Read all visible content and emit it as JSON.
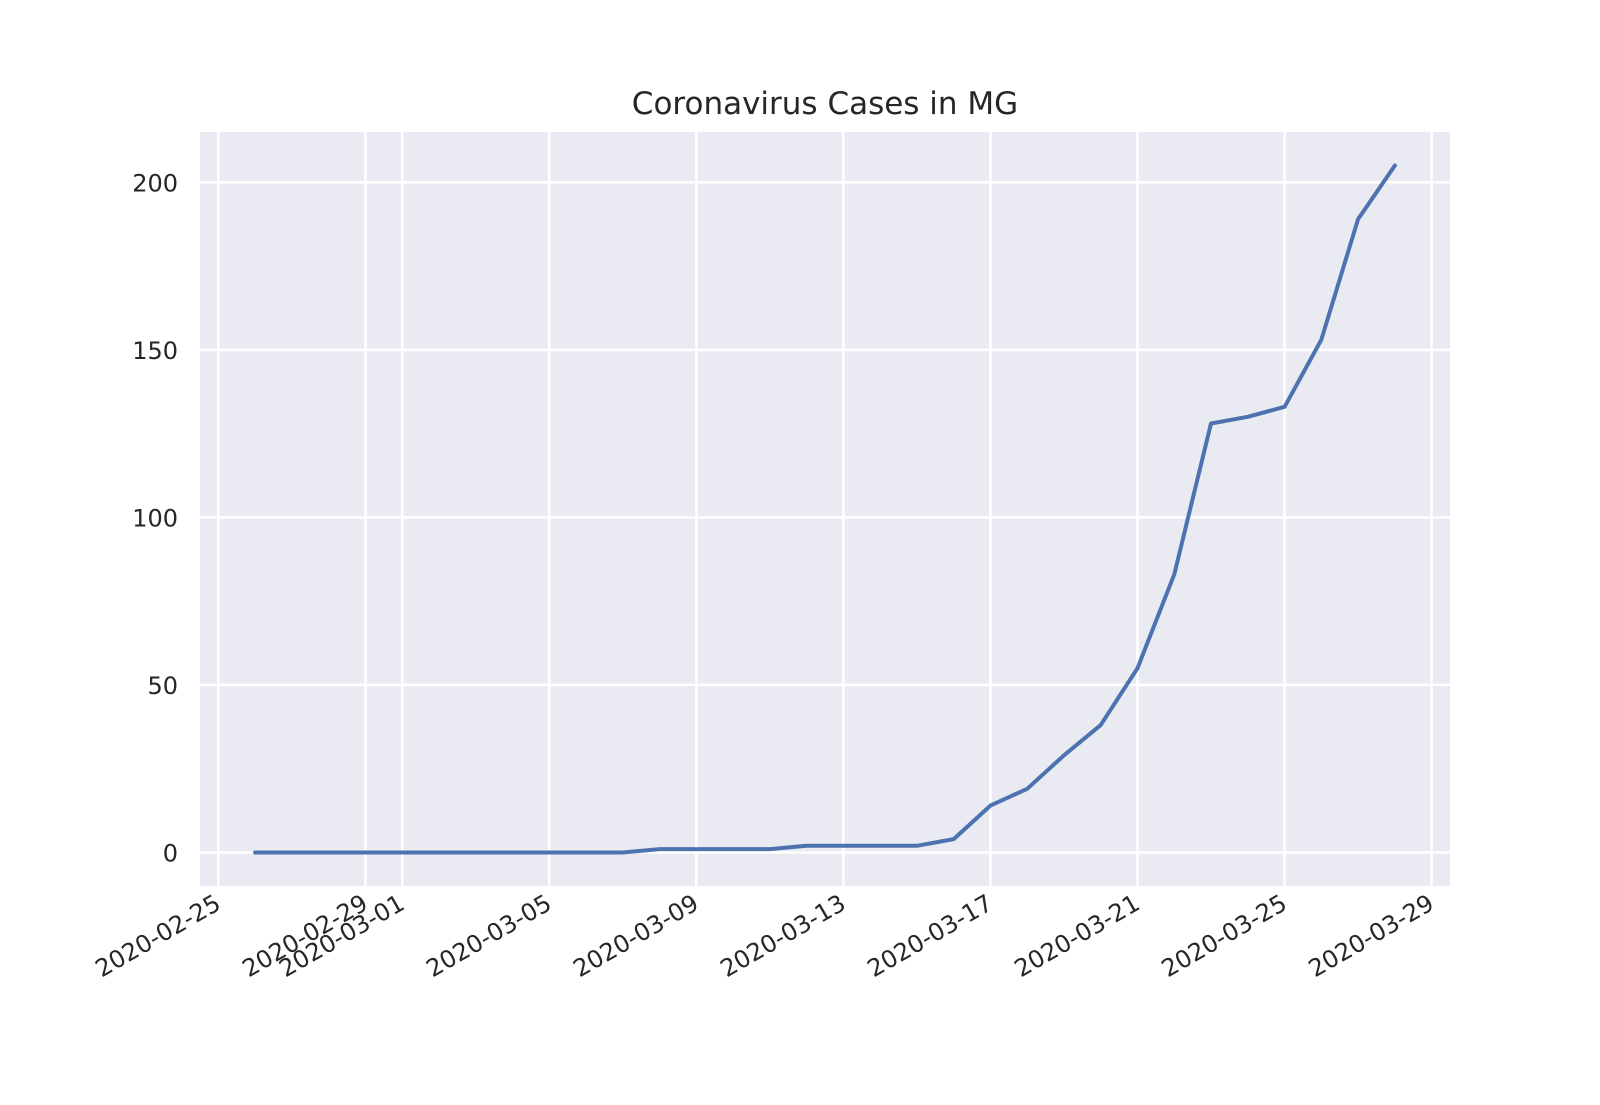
{
  "chart_data": {
    "type": "line",
    "title": "Coronavirus Cases in MG",
    "xlabel": "",
    "ylabel": "",
    "x_is_date": true,
    "xlim": [
      "2020-02-24T12:00",
      "2020-03-29T12:00"
    ],
    "ylim": [
      -10,
      215
    ],
    "xticks": [
      "2020-02-25",
      "2020-02-29",
      "2020-03-01",
      "2020-03-05",
      "2020-03-09",
      "2020-03-13",
      "2020-03-17",
      "2020-03-21",
      "2020-03-25",
      "2020-03-29"
    ],
    "yticks": [
      0,
      50,
      100,
      150,
      200
    ],
    "grid": true,
    "background": "#eaeaf2",
    "series": [
      {
        "color": "#4c72b0",
        "x": [
          "2020-02-26",
          "2020-02-27",
          "2020-02-28",
          "2020-02-29",
          "2020-03-01",
          "2020-03-02",
          "2020-03-03",
          "2020-03-04",
          "2020-03-05",
          "2020-03-06",
          "2020-03-07",
          "2020-03-08",
          "2020-03-09",
          "2020-03-10",
          "2020-03-11",
          "2020-03-12",
          "2020-03-13",
          "2020-03-14",
          "2020-03-15",
          "2020-03-16",
          "2020-03-17",
          "2020-03-18",
          "2020-03-19",
          "2020-03-20",
          "2020-03-21",
          "2020-03-22",
          "2020-03-23",
          "2020-03-24",
          "2020-03-25",
          "2020-03-26",
          "2020-03-27",
          "2020-03-28"
        ],
        "values": [
          0,
          0,
          0,
          0,
          0,
          0,
          0,
          0,
          0,
          0,
          0,
          1,
          1,
          1,
          1,
          2,
          2,
          2,
          2,
          4,
          14,
          19,
          29,
          38,
          55,
          83,
          128,
          130,
          133,
          153,
          189,
          205
        ]
      }
    ]
  }
}
